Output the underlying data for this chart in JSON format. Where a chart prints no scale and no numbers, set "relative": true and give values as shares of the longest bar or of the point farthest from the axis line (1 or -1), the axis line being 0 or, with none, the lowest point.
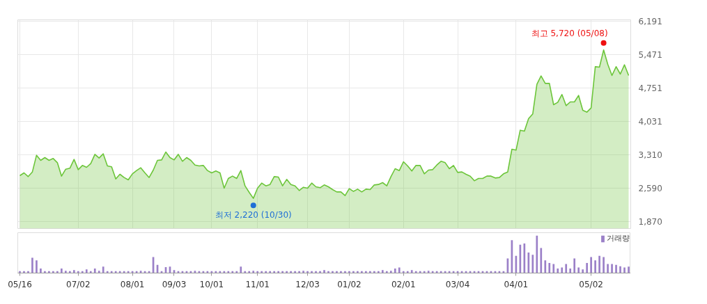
{
  "chart_data": [
    {
      "type": "area",
      "categories": [
        null,
        null,
        null,
        null,
        null,
        null,
        null,
        null,
        null,
        null,
        null,
        null,
        null,
        null,
        null,
        null,
        null,
        null,
        null,
        null,
        null,
        null,
        null,
        null,
        null,
        null,
        null,
        null,
        null,
        null,
        null,
        null,
        null,
        null,
        null,
        null,
        null,
        null,
        null,
        null,
        null,
        null,
        null,
        null,
        null,
        null,
        null,
        null,
        null,
        null,
        null,
        null,
        null,
        null,
        null,
        null,
        null,
        null,
        null,
        null,
        null,
        null,
        null,
        null,
        null,
        null,
        null,
        null,
        null,
        null,
        null,
        null,
        null,
        null,
        null,
        null,
        null,
        null,
        null,
        null,
        null,
        null,
        null,
        null,
        null,
        null,
        null,
        null,
        null,
        null,
        null,
        null,
        null,
        null,
        null,
        null,
        null,
        null,
        null,
        null,
        null,
        null,
        null,
        null,
        null,
        null,
        null,
        null,
        null,
        null,
        null,
        null,
        null,
        null,
        null,
        null,
        null,
        null,
        null,
        null,
        null,
        null,
        null,
        null,
        null,
        null,
        null,
        null,
        null,
        null,
        null,
        null,
        null,
        null,
        null,
        null,
        null,
        null,
        null,
        null,
        null,
        null,
        null,
        null,
        null,
        null,
        null
      ],
      "series": [
        {
          "color": "#6cc53a",
          "values": [
            2860,
            2920,
            2840,
            2940,
            3300,
            3190,
            3250,
            3190,
            3230,
            3140,
            2850,
            3000,
            3020,
            3210,
            2990,
            3080,
            3040,
            3120,
            3320,
            3240,
            3330,
            3070,
            3050,
            2790,
            2890,
            2820,
            2770,
            2900,
            2970,
            3030,
            2920,
            2820,
            2980,
            3190,
            3200,
            3370,
            3250,
            3200,
            3320,
            3170,
            3250,
            3190,
            3090,
            3070,
            3080,
            2970,
            2920,
            2960,
            2920,
            2590,
            2800,
            2850,
            2800,
            2970,
            2640,
            2500,
            2370,
            2590,
            2700,
            2640,
            2670,
            2840,
            2830,
            2640,
            2780,
            2670,
            2640,
            2540,
            2610,
            2590,
            2700,
            2620,
            2600,
            2660,
            2620,
            2560,
            2510,
            2510,
            2430,
            2580,
            2520,
            2570,
            2510,
            2570,
            2560,
            2660,
            2670,
            2710,
            2640,
            2840,
            3010,
            2970,
            3160,
            3070,
            2960,
            3080,
            3080,
            2900,
            2980,
            2990,
            3090,
            3170,
            3140,
            3010,
            3080,
            2930,
            2940,
            2890,
            2850,
            2750,
            2800,
            2800,
            2850,
            2850,
            2810,
            2820,
            2900,
            2940,
            3430,
            3410,
            3840,
            3820,
            4090,
            4190,
            4830,
            5010,
            4850,
            4850,
            4390,
            4440,
            4610,
            4370,
            4450,
            4450,
            4590,
            4270,
            4230,
            4320,
            5210,
            5200,
            5570,
            5260,
            5020,
            5210,
            5050,
            5250,
            5020
          ]
        },
        {
          "type": "scatter",
          "marker": "circle",
          "color": "#1f6fd6",
          "values": [
            null,
            null,
            null,
            null,
            null,
            null,
            null,
            null,
            null,
            null,
            null,
            null,
            null,
            null,
            null,
            null,
            null,
            null,
            null,
            null,
            null,
            null,
            null,
            null,
            null,
            null,
            null,
            null,
            null,
            null,
            null,
            null,
            null,
            null,
            null,
            null,
            null,
            null,
            null,
            null,
            null,
            null,
            null,
            null,
            null,
            null,
            null,
            null,
            null,
            null,
            null,
            null,
            null,
            null,
            null,
            null,
            2220,
            null,
            null,
            null,
            null,
            null,
            null,
            null,
            null,
            null,
            null,
            null,
            null,
            null,
            null,
            null,
            null,
            null,
            null,
            null,
            null,
            null,
            null,
            null,
            null,
            null,
            null,
            null,
            null,
            null,
            null,
            null,
            null,
            null,
            null,
            null,
            null,
            null,
            null,
            null,
            null,
            null,
            null,
            null,
            null,
            null,
            null,
            null,
            null,
            null,
            null,
            null,
            null,
            null,
            null,
            null,
            null,
            null,
            null,
            null,
            null,
            null,
            null,
            null,
            null,
            null,
            null,
            null,
            null,
            null,
            null,
            null,
            null,
            null,
            null,
            null,
            null,
            null,
            null,
            null,
            null,
            null,
            null,
            null,
            null,
            null,
            null,
            null,
            null,
            null,
            null
          ]
        },
        {
          "type": "scatter",
          "marker": "circle",
          "color": "#ee1111",
          "values": [
            null,
            null,
            null,
            null,
            null,
            null,
            null,
            null,
            null,
            null,
            null,
            null,
            null,
            null,
            null,
            null,
            null,
            null,
            null,
            null,
            null,
            null,
            null,
            null,
            null,
            null,
            null,
            null,
            null,
            null,
            null,
            null,
            null,
            null,
            null,
            null,
            null,
            null,
            null,
            null,
            null,
            null,
            null,
            null,
            null,
            null,
            null,
            null,
            null,
            null,
            null,
            null,
            null,
            null,
            null,
            null,
            null,
            null,
            null,
            null,
            null,
            null,
            null,
            null,
            null,
            null,
            null,
            null,
            null,
            null,
            null,
            null,
            null,
            null,
            null,
            null,
            null,
            null,
            null,
            null,
            null,
            null,
            null,
            null,
            null,
            null,
            null,
            null,
            null,
            null,
            null,
            null,
            null,
            null,
            null,
            null,
            null,
            null,
            null,
            null,
            null,
            null,
            null,
            null,
            null,
            null,
            null,
            null,
            null,
            null,
            null,
            null,
            null,
            null,
            null,
            null,
            null,
            null,
            null,
            null,
            null,
            null,
            null,
            null,
            null,
            null,
            null,
            null,
            null,
            null,
            null,
            null,
            null,
            null,
            null,
            null,
            null,
            null,
            null,
            null,
            5720,
            null,
            null,
            null,
            null,
            null,
            null
          ]
        }
      ],
      "ylim": [
        1720,
        6220
      ],
      "yticks": [
        {
          "value": 1870,
          "label": "1,870"
        },
        {
          "value": 2590,
          "label": "2,590"
        },
        {
          "value": 3310,
          "label": "3,310"
        },
        {
          "value": 4031,
          "label": "4,031"
        },
        {
          "value": 4751,
          "label": "4,751"
        },
        {
          "value": 5471,
          "label": "5,471"
        },
        {
          "value": 6191,
          "label": "6,191"
        }
      ],
      "tick_labels": "y",
      "grid": true,
      "annotations": [
        "최저 2,220 (10/30)",
        "최고 5,720 (05/08)"
      ]
    },
    {
      "type": "bar",
      "relative": true,
      "categories": [
        "05/16",
        null,
        null,
        null,
        null,
        null,
        null,
        null,
        null,
        null,
        null,
        null,
        null,
        null,
        "07/02",
        null,
        null,
        null,
        null,
        null,
        null,
        null,
        null,
        null,
        null,
        null,
        null,
        "08/01",
        null,
        null,
        null,
        null,
        null,
        null,
        null,
        null,
        null,
        "09/03",
        null,
        null,
        null,
        null,
        null,
        null,
        null,
        null,
        "10/01",
        null,
        null,
        null,
        null,
        null,
        null,
        null,
        null,
        null,
        null,
        "11/01",
        null,
        null,
        null,
        null,
        null,
        null,
        null,
        null,
        null,
        null,
        null,
        "12/03",
        null,
        null,
        null,
        null,
        null,
        null,
        null,
        null,
        null,
        "01/02",
        null,
        null,
        null,
        null,
        null,
        null,
        null,
        null,
        null,
        null,
        null,
        null,
        "02/01",
        null,
        null,
        null,
        null,
        null,
        null,
        null,
        null,
        null,
        null,
        null,
        null,
        "03/04",
        null,
        null,
        null,
        null,
        null,
        null,
        null,
        null,
        null,
        null,
        null,
        null,
        null,
        "04/01",
        null,
        null,
        null,
        null,
        null,
        null,
        null,
        null,
        null,
        null,
        null,
        null,
        null,
        null,
        null,
        null,
        null,
        "05/02",
        null,
        null,
        null,
        null,
        null,
        null,
        null,
        null,
        null
      ],
      "series": [
        {
          "name": "거래량",
          "color": "#9b80c8",
          "values": [
            0.05,
            0.05,
            0.05,
            0.41,
            0.34,
            0.12,
            0.05,
            0.05,
            0.05,
            0.05,
            0.12,
            0.06,
            0.05,
            0.08,
            0.05,
            0.05,
            0.1,
            0.05,
            0.12,
            0.06,
            0.17,
            0.05,
            0.05,
            0.05,
            0.05,
            0.05,
            0.05,
            0.05,
            0.05,
            0.06,
            0.05,
            0.05,
            0.43,
            0.22,
            0.05,
            0.16,
            0.17,
            0.08,
            0.05,
            0.05,
            0.05,
            0.05,
            0.06,
            0.05,
            0.05,
            0.05,
            0.05,
            0.05,
            0.05,
            0.05,
            0.05,
            0.05,
            0.05,
            0.17,
            0.05,
            0.05,
            0.06,
            0.05,
            0.05,
            0.05,
            0.05,
            0.05,
            0.05,
            0.05,
            0.05,
            0.05,
            0.05,
            0.05,
            0.06,
            0.05,
            0.05,
            0.05,
            0.05,
            0.08,
            0.05,
            0.05,
            0.05,
            0.05,
            0.05,
            0.05,
            0.05,
            0.05,
            0.05,
            0.05,
            0.05,
            0.05,
            0.05,
            0.08,
            0.05,
            0.06,
            0.12,
            0.15,
            0.05,
            0.05,
            0.08,
            0.05,
            0.05,
            0.05,
            0.06,
            0.05,
            0.05,
            0.05,
            0.05,
            0.05,
            0.05,
            0.05,
            0.05,
            0.05,
            0.05,
            0.05,
            0.05,
            0.05,
            0.05,
            0.05,
            0.05,
            0.05,
            0.05,
            0.39,
            0.88,
            0.46,
            0.76,
            0.79,
            0.55,
            0.49,
            1,
            0.67,
            0.34,
            0.27,
            0.24,
            0.12,
            0.15,
            0.24,
            0.12,
            0.39,
            0.15,
            0.1,
            0.27,
            0.43,
            0.34,
            0.46,
            0.43,
            0.24,
            0.24,
            0.22,
            0.18,
            0.15,
            0.17
          ]
        }
      ],
      "tick_labels": "x",
      "legend": "top right"
    }
  ]
}
